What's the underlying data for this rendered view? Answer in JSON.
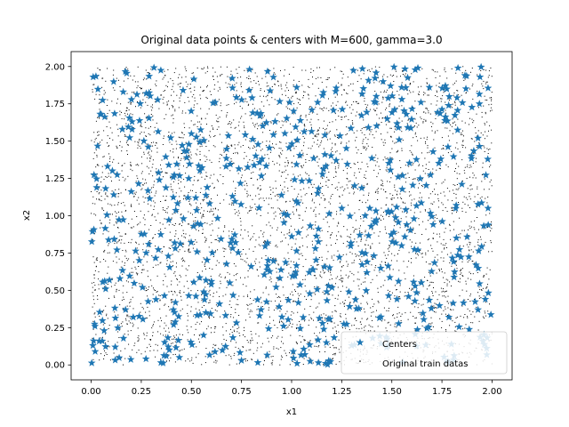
{
  "chart_data": {
    "type": "scatter",
    "title": "Original data points & centers with M=600, gamma=3.0",
    "xlabel": "x1",
    "ylabel": "x2",
    "xlim": [
      -0.1,
      2.1
    ],
    "ylim": [
      -0.1,
      2.1
    ],
    "x_ticks": [
      "0.00",
      "0.25",
      "0.50",
      "0.75",
      "1.00",
      "1.25",
      "1.50",
      "1.75",
      "2.00"
    ],
    "y_ticks": [
      "0.00",
      "0.25",
      "0.50",
      "0.75",
      "1.00",
      "1.25",
      "1.50",
      "1.75",
      "2.00"
    ],
    "grid": false,
    "legend_position": "lower right",
    "series": [
      {
        "name": "Centers",
        "marker": "star",
        "color": "#1f77b4",
        "count": 600,
        "distribution": "uniform over [0,2] x [0,2]",
        "sample_points": [
          [
            0.01,
            1.93
          ],
          [
            0.05,
            1.68
          ],
          [
            0.16,
            1.83
          ],
          [
            0.79,
            1.98
          ],
          [
            0.99,
            1.76
          ],
          [
            1.55,
            1.78
          ],
          [
            1.63,
            1.99
          ],
          [
            1.83,
            1.99
          ],
          [
            1.94,
            1.93
          ],
          [
            1.93,
            1.52
          ],
          [
            1.98,
            1.05
          ],
          [
            1.92,
            0.67
          ],
          [
            1.93,
            0.37
          ],
          [
            1.63,
            0.77
          ],
          [
            1.34,
            0.87
          ],
          [
            1.39,
            1.05
          ],
          [
            1.13,
            1.15
          ],
          [
            1.02,
            0.62
          ],
          [
            0.72,
            0.82
          ],
          [
            0.6,
            0.56
          ],
          [
            0.41,
            0.37
          ],
          [
            0.21,
            0.32
          ],
          [
            0.04,
            0.16
          ],
          [
            0.02,
            0.09
          ],
          [
            0.12,
            0.12
          ],
          [
            0.44,
            0.05
          ],
          [
            0.75,
            0.03
          ],
          [
            0.96,
            0.26
          ],
          [
            1.17,
            0.01
          ],
          [
            1.3,
            0.13
          ],
          [
            1.13,
            1.76
          ],
          [
            1.57,
            1.04
          ],
          [
            0.34,
            1.24
          ],
          [
            0.24,
            0.7
          ],
          [
            0.5,
            1.55
          ]
        ]
      },
      {
        "name": "Original train datas",
        "marker": "point",
        "color": "#000000",
        "distribution": "uniform over [0,2] x [0,2]",
        "density": "dense"
      }
    ]
  }
}
